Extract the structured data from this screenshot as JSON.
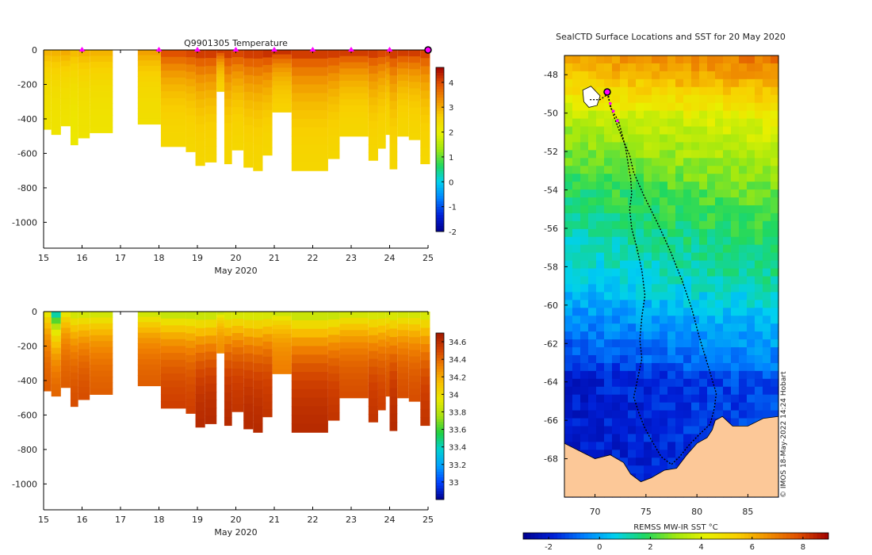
{
  "colors": {
    "temp_scale": [
      "#00008f",
      "#0020d8",
      "#0080ff",
      "#00d0f0",
      "#20d860",
      "#a0e810",
      "#e8f000",
      "#f8d000",
      "#f09000",
      "#e05000",
      "#a00000"
    ],
    "salt_scale": [
      "#00008f",
      "#0040ff",
      "#00a0ff",
      "#00d0d0",
      "#20d040",
      "#a8e010",
      "#e8e800",
      "#f8c000",
      "#f08000",
      "#d04000",
      "#a01800"
    ],
    "land": "#fcc898",
    "marker": "#ff00ff",
    "track": "#000000"
  },
  "chart_data": [
    {
      "id": "temperature",
      "type": "heatmap",
      "title": "Q9901305  Temperature",
      "xlabel": "May 2020",
      "ylabel": "",
      "xlim": [
        15,
        25
      ],
      "ylim": [
        -1150,
        0
      ],
      "xticks": [
        15,
        16,
        17,
        18,
        19,
        20,
        21,
        22,
        23,
        24,
        25
      ],
      "yticks": [
        0,
        -200,
        -400,
        -600,
        -800,
        -1000
      ],
      "colorbar": {
        "min": -2,
        "max": 4.6,
        "ticks": [
          4,
          3,
          2,
          1,
          0,
          -1,
          -2
        ]
      },
      "profile_days": [
        16,
        18,
        19,
        20,
        21,
        22,
        23,
        24,
        25
      ],
      "profiles": [
        {
          "x0": 15.0,
          "x1": 15.2,
          "depth": 460,
          "surface": 3.0,
          "deep": 2.2
        },
        {
          "x0": 15.2,
          "x1": 15.45,
          "depth": 490,
          "surface": 3.0,
          "deep": 2.2
        },
        {
          "x0": 15.45,
          "x1": 15.7,
          "depth": 440,
          "surface": 3.1,
          "deep": 2.2
        },
        {
          "x0": 15.7,
          "x1": 15.9,
          "depth": 550,
          "surface": 2.9,
          "deep": 2.1
        },
        {
          "x0": 15.9,
          "x1": 16.2,
          "depth": 510,
          "surface": 3.0,
          "deep": 2.2
        },
        {
          "x0": 16.2,
          "x1": 16.8,
          "depth": 480,
          "surface": 3.0,
          "deep": 2.2
        },
        {
          "x0": 17.45,
          "x1": 18.05,
          "depth": 430,
          "surface": 3.2,
          "deep": 2.3
        },
        {
          "x0": 18.05,
          "x1": 18.7,
          "depth": 560,
          "surface": 4.1,
          "deep": 2.4
        },
        {
          "x0": 18.7,
          "x1": 18.95,
          "depth": 590,
          "surface": 4.2,
          "deep": 2.4
        },
        {
          "x0": 18.95,
          "x1": 19.2,
          "depth": 670,
          "surface": 4.3,
          "deep": 2.4
        },
        {
          "x0": 19.2,
          "x1": 19.5,
          "depth": 650,
          "surface": 4.3,
          "deep": 2.4
        },
        {
          "x0": 19.5,
          "x1": 19.7,
          "depth": 240,
          "surface": 4.3,
          "deep": 2.5
        },
        {
          "x0": 19.7,
          "x1": 19.9,
          "depth": 660,
          "surface": 4.3,
          "deep": 2.4
        },
        {
          "x0": 19.9,
          "x1": 20.2,
          "depth": 580,
          "surface": 4.2,
          "deep": 2.4
        },
        {
          "x0": 20.2,
          "x1": 20.45,
          "depth": 680,
          "surface": 4.3,
          "deep": 2.4
        },
        {
          "x0": 20.45,
          "x1": 20.7,
          "depth": 700,
          "surface": 4.3,
          "deep": 2.4
        },
        {
          "x0": 20.7,
          "x1": 20.95,
          "depth": 610,
          "surface": 4.4,
          "deep": 2.4
        },
        {
          "x0": 20.95,
          "x1": 21.45,
          "depth": 360,
          "surface": 4.4,
          "deep": 2.5
        },
        {
          "x0": 21.45,
          "x1": 22.4,
          "depth": 700,
          "surface": 4.3,
          "deep": 2.4
        },
        {
          "x0": 22.4,
          "x1": 22.7,
          "depth": 630,
          "surface": 4.3,
          "deep": 2.4
        },
        {
          "x0": 22.7,
          "x1": 23.45,
          "depth": 500,
          "surface": 4.3,
          "deep": 2.4
        },
        {
          "x0": 23.45,
          "x1": 23.7,
          "depth": 640,
          "surface": 4.3,
          "deep": 2.4
        },
        {
          "x0": 23.7,
          "x1": 23.9,
          "depth": 570,
          "surface": 4.2,
          "deep": 2.4
        },
        {
          "x0": 23.9,
          "x1": 24.0,
          "depth": 490,
          "surface": 4.2,
          "deep": 2.4
        },
        {
          "x0": 24.0,
          "x1": 24.2,
          "depth": 690,
          "surface": 4.3,
          "deep": 2.4
        },
        {
          "x0": 24.2,
          "x1": 24.5,
          "depth": 500,
          "surface": 4.3,
          "deep": 2.4
        },
        {
          "x0": 24.5,
          "x1": 24.8,
          "depth": 520,
          "surface": 4.3,
          "deep": 2.4
        },
        {
          "x0": 24.8,
          "x1": 25.05,
          "depth": 660,
          "surface": 4.2,
          "deep": 2.4
        }
      ]
    },
    {
      "id": "salinity",
      "type": "heatmap",
      "title": "",
      "xlabel": "May 2020",
      "ylabel": "",
      "xlim": [
        15,
        25
      ],
      "ylim": [
        -1150,
        0
      ],
      "xticks": [
        15,
        16,
        17,
        18,
        19,
        20,
        21,
        22,
        23,
        24,
        25
      ],
      "yticks": [
        0,
        -200,
        -400,
        -600,
        -800,
        -1000
      ],
      "colorbar": {
        "min": 32.8,
        "max": 34.7,
        "ticks": [
          34.6,
          34.4,
          34.2,
          34,
          33.8,
          33.6,
          33.4,
          33.2,
          33
        ]
      },
      "profiles": [
        {
          "x0": 15.0,
          "x1": 15.2,
          "depth": 460,
          "surface": 33.9,
          "deep": 34.45
        },
        {
          "x0": 15.2,
          "x1": 15.45,
          "depth": 490,
          "surface": 33.3,
          "deep": 34.45
        },
        {
          "x0": 15.45,
          "x1": 15.7,
          "depth": 440,
          "surface": 33.9,
          "deep": 34.45
        },
        {
          "x0": 15.7,
          "x1": 15.9,
          "depth": 550,
          "surface": 33.8,
          "deep": 34.5
        },
        {
          "x0": 15.9,
          "x1": 16.2,
          "depth": 510,
          "surface": 33.8,
          "deep": 34.5
        },
        {
          "x0": 16.2,
          "x1": 16.8,
          "depth": 480,
          "surface": 33.8,
          "deep": 34.45
        },
        {
          "x0": 17.45,
          "x1": 18.05,
          "depth": 430,
          "surface": 33.8,
          "deep": 34.45
        },
        {
          "x0": 18.05,
          "x1": 18.7,
          "depth": 560,
          "surface": 33.75,
          "deep": 34.55
        },
        {
          "x0": 18.7,
          "x1": 18.95,
          "depth": 590,
          "surface": 33.75,
          "deep": 34.55
        },
        {
          "x0": 18.95,
          "x1": 19.2,
          "depth": 670,
          "surface": 33.75,
          "deep": 34.65
        },
        {
          "x0": 19.2,
          "x1": 19.5,
          "depth": 650,
          "surface": 33.75,
          "deep": 34.65
        },
        {
          "x0": 19.5,
          "x1": 19.7,
          "depth": 240,
          "surface": 33.8,
          "deep": 34.3
        },
        {
          "x0": 19.7,
          "x1": 19.9,
          "depth": 660,
          "surface": 33.8,
          "deep": 34.65
        },
        {
          "x0": 19.9,
          "x1": 20.2,
          "depth": 580,
          "surface": 33.8,
          "deep": 34.6
        },
        {
          "x0": 20.2,
          "x1": 20.45,
          "depth": 680,
          "surface": 33.8,
          "deep": 34.65
        },
        {
          "x0": 20.45,
          "x1": 20.7,
          "depth": 700,
          "surface": 33.8,
          "deep": 34.65
        },
        {
          "x0": 20.7,
          "x1": 20.95,
          "depth": 610,
          "surface": 33.8,
          "deep": 34.6
        },
        {
          "x0": 20.95,
          "x1": 21.45,
          "depth": 360,
          "surface": 33.8,
          "deep": 34.35
        },
        {
          "x0": 21.45,
          "x1": 22.4,
          "depth": 700,
          "surface": 33.75,
          "deep": 34.65
        },
        {
          "x0": 22.4,
          "x1": 22.7,
          "depth": 630,
          "surface": 33.75,
          "deep": 34.6
        },
        {
          "x0": 22.7,
          "x1": 23.45,
          "depth": 500,
          "surface": 33.8,
          "deep": 34.5
        },
        {
          "x0": 23.45,
          "x1": 23.7,
          "depth": 640,
          "surface": 33.8,
          "deep": 34.6
        },
        {
          "x0": 23.7,
          "x1": 23.9,
          "depth": 570,
          "surface": 33.8,
          "deep": 34.55
        },
        {
          "x0": 23.9,
          "x1": 24.0,
          "depth": 490,
          "surface": 33.8,
          "deep": 34.5
        },
        {
          "x0": 24.0,
          "x1": 24.2,
          "depth": 690,
          "surface": 33.8,
          "deep": 34.65
        },
        {
          "x0": 24.2,
          "x1": 24.5,
          "depth": 500,
          "surface": 33.8,
          "deep": 34.5
        },
        {
          "x0": 24.5,
          "x1": 24.8,
          "depth": 520,
          "surface": 33.8,
          "deep": 34.5
        },
        {
          "x0": 24.8,
          "x1": 25.05,
          "depth": 660,
          "surface": 33.8,
          "deep": 34.6
        }
      ]
    },
    {
      "id": "sst_map",
      "type": "heatmap",
      "title": "SealCTD Surface Locations and SST for 20 May 2020",
      "xlabel": "",
      "ylabel": "",
      "xlim": [
        67,
        88
      ],
      "ylim": [
        -70,
        -47
      ],
      "xticks": [
        70,
        75,
        80,
        85
      ],
      "yticks": [
        -48,
        -50,
        -52,
        -54,
        -56,
        -58,
        -60,
        -62,
        -64,
        -66,
        -68
      ],
      "colorbar": {
        "label": "REMSS MW-IR SST °C",
        "min": -3,
        "max": 9,
        "ticks": [
          -2,
          0,
          2,
          4,
          6,
          8
        ]
      },
      "sst_profile": [
        {
          "lat": -47,
          "sst": 6.8
        },
        {
          "lat": -49,
          "sst": 5.2
        },
        {
          "lat": -50,
          "sst": 4.0
        },
        {
          "lat": -51,
          "sst": 3.4
        },
        {
          "lat": -52,
          "sst": 3.1
        },
        {
          "lat": -53,
          "sst": 2.6
        },
        {
          "lat": -54,
          "sst": 2.2
        },
        {
          "lat": -55,
          "sst": 1.9
        },
        {
          "lat": -56,
          "sst": 1.6
        },
        {
          "lat": -57,
          "sst": 1.3
        },
        {
          "lat": -58,
          "sst": 1.1
        },
        {
          "lat": -59,
          "sst": 0.8
        },
        {
          "lat": -60,
          "sst": 0.3
        },
        {
          "lat": -61,
          "sst": -0.2
        },
        {
          "lat": -62,
          "sst": -0.6
        },
        {
          "lat": -63,
          "sst": -1.0
        },
        {
          "lat": -63.8,
          "sst": -1.6
        },
        {
          "lat": -70,
          "sst": -1.8
        }
      ],
      "track": [
        [
          69.5,
          -49.3
        ],
        [
          70.5,
          -49.3
        ],
        [
          71.3,
          -49.0
        ],
        [
          71.5,
          -49.7
        ],
        [
          72.3,
          -50.4
        ],
        [
          72.6,
          -51.0
        ],
        [
          73.0,
          -51.8
        ],
        [
          73.3,
          -52.8
        ],
        [
          73.5,
          -53.4
        ],
        [
          73.6,
          -54.2
        ],
        [
          73.4,
          -55.0
        ],
        [
          73.6,
          -56.0
        ],
        [
          74.1,
          -57.0
        ],
        [
          74.6,
          -58.2
        ],
        [
          74.9,
          -59.5
        ],
        [
          74.6,
          -60.6
        ],
        [
          74.4,
          -61.8
        ],
        [
          74.6,
          -62.8
        ],
        [
          74.2,
          -63.8
        ],
        [
          73.8,
          -64.8
        ],
        [
          74.3,
          -65.6
        ],
        [
          74.8,
          -66.3
        ],
        [
          75.5,
          -67.0
        ],
        [
          76.5,
          -67.9
        ],
        [
          77.5,
          -68.3
        ],
        [
          78.3,
          -67.9
        ],
        [
          79.2,
          -67.3
        ],
        [
          80.3,
          -66.7
        ],
        [
          81.3,
          -66.2
        ],
        [
          81.7,
          -65.4
        ],
        [
          81.9,
          -64.6
        ],
        [
          81.0,
          -63.0
        ],
        [
          80.2,
          -61.6
        ],
        [
          79.5,
          -60.2
        ],
        [
          78.6,
          -58.8
        ],
        [
          77.4,
          -57.2
        ],
        [
          76.2,
          -55.8
        ],
        [
          74.8,
          -54.3
        ],
        [
          73.8,
          -53.1
        ],
        [
          73.4,
          -52.2
        ],
        [
          72.6,
          -51.2
        ],
        [
          71.8,
          -50.1
        ],
        [
          71.2,
          -49.0
        ]
      ],
      "latest_position": [
        71.2,
        -48.9
      ]
    }
  ],
  "watermark": "© IMOS 18-May-2022 14:24 Hobart"
}
